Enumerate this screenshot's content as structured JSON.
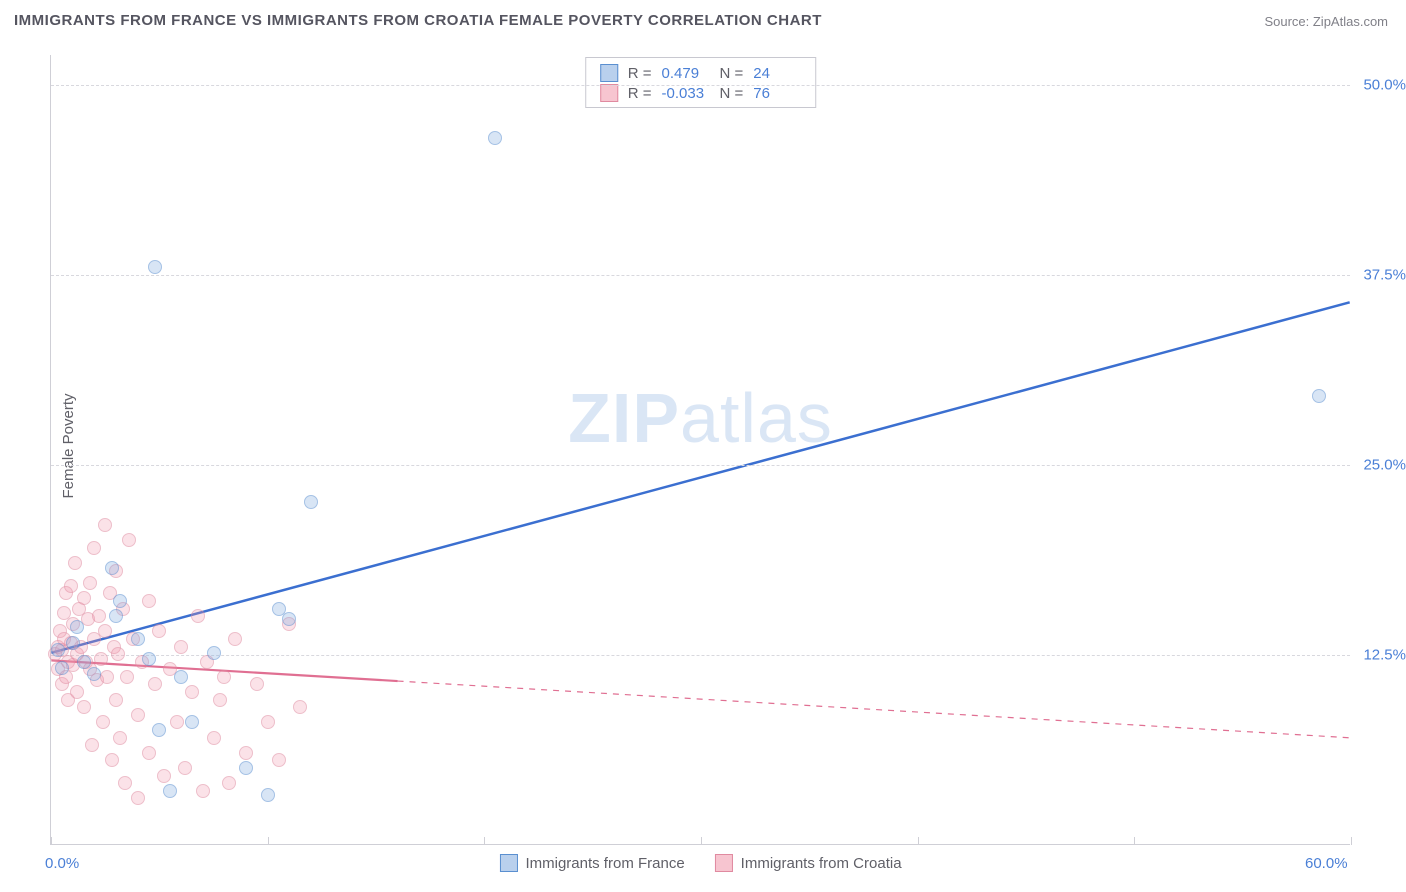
{
  "title": "IMMIGRANTS FROM FRANCE VS IMMIGRANTS FROM CROATIA FEMALE POVERTY CORRELATION CHART",
  "source": "Source: ZipAtlas.com",
  "watermark_bold": "ZIP",
  "watermark_rest": "atlas",
  "chart": {
    "type": "scatter",
    "ylabel": "Female Poverty",
    "xlim": [
      0,
      60
    ],
    "ylim": [
      0,
      52
    ],
    "x_tick_positions": [
      0,
      10,
      20,
      30,
      40,
      50,
      60
    ],
    "x_tick_labels_shown": {
      "0": "0.0%",
      "60": "60.0%"
    },
    "y_gridlines": [
      12.5,
      25.0,
      37.5,
      50.0
    ],
    "y_tick_labels": [
      "12.5%",
      "25.0%",
      "37.5%",
      "50.0%"
    ],
    "background_color": "#ffffff",
    "grid_color": "#d8d8de",
    "axis_color": "#cfcfd6",
    "label_color": "#606068",
    "tick_label_color": "#4a7fd6",
    "marker_radius": 7,
    "series": [
      {
        "name": "Immigrants from France",
        "color_fill": "rgba(127,170,222,0.55)",
        "color_stroke": "#5a8fd0",
        "trend_color": "#3b6fd0",
        "trend_line_width": 2.5,
        "r": "0.479",
        "n": "24",
        "trend": {
          "x1": 0,
          "y1": 12.6,
          "x2": 60,
          "y2": 35.7,
          "solid_end_x": 60
        },
        "points": [
          [
            0.3,
            12.8
          ],
          [
            0.5,
            11.6
          ],
          [
            1.0,
            13.2
          ],
          [
            1.2,
            14.3
          ],
          [
            1.5,
            12.0
          ],
          [
            2.0,
            11.2
          ],
          [
            2.8,
            18.2
          ],
          [
            3.0,
            15.0
          ],
          [
            3.2,
            16.0
          ],
          [
            4.0,
            13.5
          ],
          [
            4.5,
            12.2
          ],
          [
            5.0,
            7.5
          ],
          [
            5.5,
            3.5
          ],
          [
            6.0,
            11.0
          ],
          [
            7.5,
            12.6
          ],
          [
            9.0,
            5.0
          ],
          [
            10.0,
            3.2
          ],
          [
            10.5,
            15.5
          ],
          [
            12.0,
            22.5
          ],
          [
            11.0,
            14.8
          ],
          [
            4.8,
            38.0
          ],
          [
            20.5,
            46.5
          ],
          [
            58.5,
            29.5
          ],
          [
            6.5,
            8.0
          ]
        ]
      },
      {
        "name": "Immigrants from Croatia",
        "color_fill": "rgba(240,150,170,0.5)",
        "color_stroke": "#e08aa0",
        "trend_color": "#e06f92",
        "trend_line_width": 2.2,
        "r": "-0.033",
        "n": "76",
        "trend": {
          "x1": 0,
          "y1": 12.1,
          "x2": 60,
          "y2": 7.0,
          "solid_end_x": 16
        },
        "points": [
          [
            0.2,
            12.5
          ],
          [
            0.3,
            13.0
          ],
          [
            0.3,
            11.5
          ],
          [
            0.4,
            14.0
          ],
          [
            0.5,
            12.8
          ],
          [
            0.5,
            10.5
          ],
          [
            0.6,
            15.2
          ],
          [
            0.6,
            13.5
          ],
          [
            0.7,
            11.0
          ],
          [
            0.7,
            16.5
          ],
          [
            0.8,
            12.0
          ],
          [
            0.8,
            9.5
          ],
          [
            0.9,
            17.0
          ],
          [
            0.9,
            13.2
          ],
          [
            1.0,
            14.5
          ],
          [
            1.0,
            11.8
          ],
          [
            1.1,
            18.5
          ],
          [
            1.2,
            12.5
          ],
          [
            1.2,
            10.0
          ],
          [
            1.3,
            15.5
          ],
          [
            1.4,
            13.0
          ],
          [
            1.5,
            16.2
          ],
          [
            1.5,
            9.0
          ],
          [
            1.6,
            12.0
          ],
          [
            1.7,
            14.8
          ],
          [
            1.8,
            11.5
          ],
          [
            1.8,
            17.2
          ],
          [
            1.9,
            6.5
          ],
          [
            2.0,
            13.5
          ],
          [
            2.0,
            19.5
          ],
          [
            2.1,
            10.8
          ],
          [
            2.2,
            15.0
          ],
          [
            2.3,
            12.2
          ],
          [
            2.4,
            8.0
          ],
          [
            2.5,
            21.0
          ],
          [
            2.5,
            14.0
          ],
          [
            2.6,
            11.0
          ],
          [
            2.7,
            16.5
          ],
          [
            2.8,
            5.5
          ],
          [
            2.9,
            13.0
          ],
          [
            3.0,
            18.0
          ],
          [
            3.0,
            9.5
          ],
          [
            3.1,
            12.5
          ],
          [
            3.2,
            7.0
          ],
          [
            3.3,
            15.5
          ],
          [
            3.4,
            4.0
          ],
          [
            3.5,
            11.0
          ],
          [
            3.6,
            20.0
          ],
          [
            3.8,
            13.5
          ],
          [
            4.0,
            8.5
          ],
          [
            4.0,
            3.0
          ],
          [
            4.2,
            12.0
          ],
          [
            4.5,
            6.0
          ],
          [
            4.5,
            16.0
          ],
          [
            4.8,
            10.5
          ],
          [
            5.0,
            14.0
          ],
          [
            5.2,
            4.5
          ],
          [
            5.5,
            11.5
          ],
          [
            5.8,
            8.0
          ],
          [
            6.0,
            13.0
          ],
          [
            6.2,
            5.0
          ],
          [
            6.5,
            10.0
          ],
          [
            6.8,
            15.0
          ],
          [
            7.0,
            3.5
          ],
          [
            7.2,
            12.0
          ],
          [
            7.5,
            7.0
          ],
          [
            7.8,
            9.5
          ],
          [
            8.0,
            11.0
          ],
          [
            8.2,
            4.0
          ],
          [
            8.5,
            13.5
          ],
          [
            9.0,
            6.0
          ],
          [
            9.5,
            10.5
          ],
          [
            10.0,
            8.0
          ],
          [
            11.0,
            14.5
          ],
          [
            10.5,
            5.5
          ],
          [
            11.5,
            9.0
          ]
        ]
      }
    ]
  },
  "stats_legend": {
    "rows": [
      {
        "swatch": "blue",
        "r_label": "R = ",
        "r_val": "0.479",
        "n_label": "N = ",
        "n_val": "24"
      },
      {
        "swatch": "pink",
        "r_label": "R = ",
        "r_val": "-0.033",
        "n_label": "N = ",
        "n_val": "76"
      }
    ]
  },
  "bottom_legend": [
    {
      "swatch": "blue",
      "label": "Immigrants from France"
    },
    {
      "swatch": "pink",
      "label": "Immigrants from Croatia"
    }
  ]
}
